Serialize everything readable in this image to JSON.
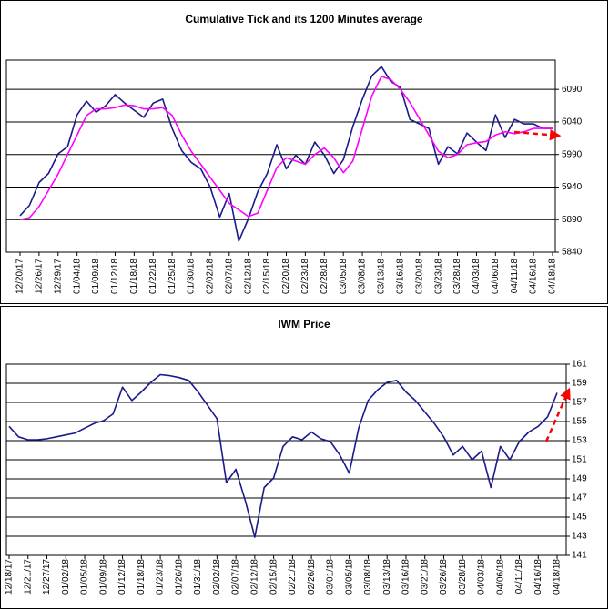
{
  "chart_data": [
    {
      "type": "line",
      "title": "Cumulative Tick and its 1200 Minutes average",
      "categories": [
        "12/20/17",
        null,
        "12/26/17",
        null,
        "12/29/17",
        null,
        "01/04/18",
        null,
        "01/09/18",
        null,
        "01/12/18",
        null,
        "01/18/18",
        null,
        "01/22/18",
        null,
        "01/25/18",
        null,
        "01/30/18",
        null,
        "02/02/18",
        null,
        "02/07/18",
        null,
        "02/12/18",
        null,
        "02/15/18",
        null,
        "02/20/18",
        null,
        "02/23/18",
        null,
        "02/28/18",
        null,
        "03/05/18",
        null,
        "03/08/18",
        null,
        "03/13/18",
        null,
        "03/16/18",
        null,
        "03/20/18",
        null,
        "03/23/18",
        null,
        "03/28/18",
        null,
        "04/03/18",
        null,
        "04/06/18",
        null,
        "04/11/18",
        null,
        "04/16/18",
        null,
        "04/18/18"
      ],
      "series": [
        {
          "color": "#1a1a8c",
          "values": [
            5896,
            5912,
            5947,
            5961,
            5991,
            6002,
            6051,
            6072,
            6055,
            6065,
            6082,
            6069,
            6058,
            6047,
            6069,
            6075,
            6030,
            5996,
            5978,
            5968,
            5940,
            5894,
            5930,
            5857,
            5891,
            5933,
            5961,
            6005,
            5968,
            5989,
            5975,
            6009,
            5989,
            5961,
            5982,
            6033,
            6075,
            6111,
            6125,
            6102,
            6093,
            6044,
            6037,
            6030,
            5975,
            6002,
            5991,
            6023,
            6009,
            5996,
            6051,
            6016,
            6044,
            6037,
            6037,
            6030,
            6030
          ]
        },
        {
          "color": "#ff00ff",
          "values": [
            5890,
            5893,
            5910,
            5935,
            5960,
            5990,
            6020,
            6050,
            6060,
            6060,
            6062,
            6066,
            6065,
            6060,
            6060,
            6062,
            6050,
            6020,
            5995,
            5975,
            5955,
            5935,
            5915,
            5905,
            5895,
            5900,
            5935,
            5970,
            5985,
            5980,
            5975,
            5990,
            6000,
            5985,
            5962,
            5980,
            6030,
            6080,
            6110,
            6105,
            6090,
            6070,
            6045,
            6020,
            5995,
            5985,
            5990,
            6005,
            6008,
            6010,
            6020,
            6025,
            6022,
            6025,
            6030,
            6030,
            6030
          ]
        }
      ],
      "ylim": [
        5840,
        6135
      ],
      "yticks": [
        5840,
        5890,
        5940,
        5990,
        6040,
        6090
      ],
      "grid": true
    },
    {
      "type": "line",
      "title": "IWM Price",
      "categories": [
        "12/18/17",
        null,
        "12/21/17",
        null,
        "12/27/17",
        null,
        "01/02/18",
        null,
        "01/05/18",
        null,
        "01/09/18",
        null,
        "01/12/18",
        null,
        "01/18/18",
        null,
        "01/23/18",
        null,
        "01/26/18",
        null,
        "01/31/18",
        null,
        "02/02/18",
        null,
        "02/07/18",
        null,
        "02/12/18",
        null,
        "02/15/18",
        null,
        "02/21/18",
        null,
        "02/26/18",
        null,
        "03/01/18",
        null,
        "03/05/18",
        null,
        "03/08/18",
        null,
        "03/13/18",
        null,
        "03/16/18",
        null,
        "03/21/18",
        null,
        "03/26/18",
        null,
        "03/28/18",
        null,
        "04/03/18",
        null,
        "04/06/18",
        null,
        "04/11/18",
        null,
        "04/16/18",
        null,
        "04/18/18"
      ],
      "series": [
        {
          "color": "#1a1a8c",
          "values": [
            154.5,
            153.4,
            153.1,
            153.1,
            153.2,
            153.4,
            153.6,
            153.8,
            154.3,
            154.8,
            155.1,
            155.8,
            158.6,
            157.2,
            158.1,
            159.1,
            159.9,
            159.8,
            159.6,
            159.3,
            158.1,
            156.7,
            155.3,
            148.6,
            150.0,
            146.7,
            142.9,
            148.1,
            149.1,
            152.4,
            153.4,
            153.1,
            153.9,
            153.2,
            152.9,
            151.5,
            149.6,
            154.3,
            157.2,
            158.3,
            159.1,
            159.3,
            158.1,
            157.2,
            156.0,
            154.8,
            153.4,
            151.5,
            152.4,
            151.0,
            151.9,
            148.1,
            152.4,
            151.0,
            152.9,
            153.9,
            154.5,
            155.5,
            158.0
          ]
        }
      ],
      "ylim": [
        141,
        161
      ],
      "yticks": [
        141,
        143,
        145,
        147,
        149,
        151,
        153,
        155,
        157,
        159,
        161
      ],
      "grid": true
    }
  ]
}
